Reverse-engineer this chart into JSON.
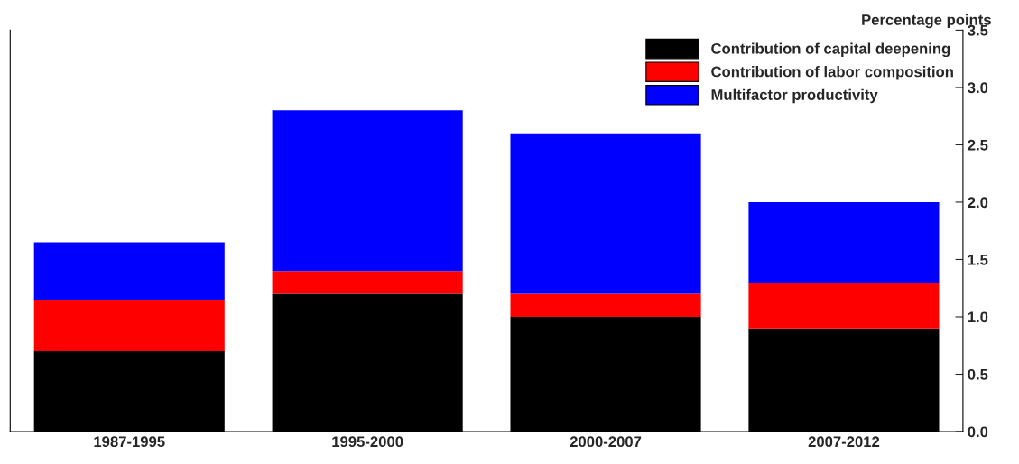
{
  "chart_data": {
    "type": "bar",
    "stacked": true,
    "ylabel": "Percentage points",
    "categories": [
      "1987-1995",
      "1995-2000",
      "2000-2007",
      "2007-2012"
    ],
    "series": [
      {
        "name": "Contribution of capital deepening",
        "color": "#000000",
        "values": [
          0.7,
          1.2,
          1.0,
          0.9
        ]
      },
      {
        "name": "Contribution of labor composition",
        "color": "#ff0000",
        "values": [
          0.45,
          0.2,
          0.2,
          0.4
        ]
      },
      {
        "name": "Multifactor productivity",
        "color": "#0000ff",
        "values": [
          0.5,
          1.4,
          1.4,
          0.7
        ]
      }
    ],
    "ylim": [
      0,
      3.5
    ],
    "yticks": [
      {
        "value": 0,
        "label": "0.0"
      },
      0.5,
      {
        "value": 1,
        "label": "1.0"
      },
      1.5,
      {
        "value": 2,
        "label": "2.0"
      },
      2.5,
      {
        "value": 3,
        "label": "3.0"
      },
      3.5
    ],
    "grid": false,
    "legend": "top right"
  }
}
